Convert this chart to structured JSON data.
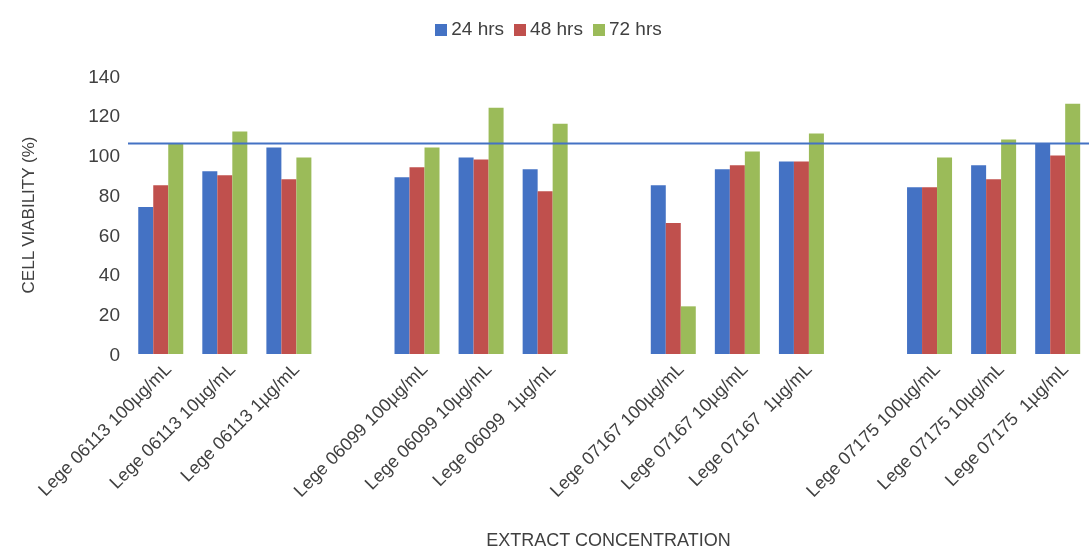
{
  "chart_data": {
    "type": "bar",
    "xlabel": "EXTRACT CONCENTRATION",
    "ylabel": "CELL VIABILITY (%)",
    "categories": [
      "Lege 06113 100µg/mL",
      "Lege 06113 10µg/mL",
      "Lege 06113 1µg/mL",
      null,
      "Lege 06099 100µg/mL",
      "Lege 06099 10µg/mL",
      "Lege 06099  1µg/mL",
      null,
      "Lege 07167 100µg/mL",
      "Lege 07167 10µg/mL",
      "Lege 07167  1µg/mL",
      null,
      "Lege 07175 100µg/mL",
      "Lege 07175 10µg/mL",
      "Lege 07175  1µg/mL"
    ],
    "series": [
      {
        "name": "24 hrs",
        "color": "#4472c4",
        "values": [
          74,
          92,
          104,
          null,
          89,
          99,
          93,
          null,
          85,
          93,
          97,
          null,
          84,
          95,
          106
        ]
      },
      {
        "name": "48 hrs",
        "color": "#c0504d",
        "values": [
          85,
          90,
          88,
          null,
          94,
          98,
          82,
          null,
          66,
          95,
          97,
          null,
          84,
          88,
          100
        ]
      },
      {
        "name": "72 hrs",
        "color": "#9bbb59",
        "values": [
          106,
          112,
          99,
          null,
          104,
          124,
          116,
          null,
          24,
          102,
          111,
          null,
          99,
          108,
          126
        ]
      }
    ],
    "ylim": [
      0,
      140
    ],
    "yticks": [
      0,
      20,
      40,
      60,
      80,
      100,
      120,
      140
    ],
    "ref_lines": [
      {
        "axis": "y",
        "value": 106,
        "color": "#4472c4"
      }
    ],
    "grid": false,
    "legend": "top"
  }
}
